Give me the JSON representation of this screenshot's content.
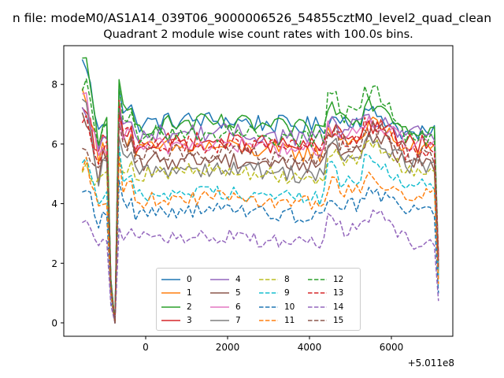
{
  "figure": {
    "suptitle": "n file: modeM0/AS1A14_039T06_9000006526_54855cztM0_level2_quad_clean",
    "offset_label": "+5.011e8"
  },
  "chart_data": {
    "type": "line",
    "title": "Quadrant 2 module wise count rates with 100.0s bins.",
    "xlabel": "",
    "ylabel": "",
    "xlim": [
      -2000,
      7500
    ],
    "ylim": [
      -0.45,
      9.3
    ],
    "x_ticks": [
      0,
      2000,
      4000,
      6000
    ],
    "x_tick_labels": [
      "0",
      "2000",
      "4000",
      "6000"
    ],
    "y_ticks": [
      0,
      2,
      4,
      6,
      8
    ],
    "y_tick_labels": [
      "0",
      "2",
      "4",
      "6",
      "8"
    ],
    "x_offset": "+5.011e8",
    "legend_position": "lower center",
    "series": [
      {
        "name": "0",
        "color": "#1f77b4",
        "dash": "solid",
        "start": 8.7,
        "peak": 8.1,
        "mid": 6.7,
        "flare": 7.0,
        "end": 6.3
      },
      {
        "name": "1",
        "color": "#ff7f0e",
        "dash": "solid",
        "start": 7.7,
        "peak": 7.0,
        "mid": 5.8,
        "flare": 6.6,
        "end": 5.8
      },
      {
        "name": "2",
        "color": "#2ca02c",
        "dash": "solid",
        "start": 8.7,
        "peak": 7.9,
        "mid": 6.6,
        "flare": 7.4,
        "end": 6.5
      },
      {
        "name": "3",
        "color": "#d62728",
        "dash": "solid",
        "start": 7.0,
        "peak": 7.3,
        "mid": 6.0,
        "flare": 6.6,
        "end": 6.0
      },
      {
        "name": "4",
        "color": "#9467bd",
        "dash": "solid",
        "start": 7.0,
        "peak": 7.1,
        "mid": 6.3,
        "flare": 6.8,
        "end": 6.3
      },
      {
        "name": "5",
        "color": "#8c564b",
        "dash": "solid",
        "start": 6.8,
        "peak": 7.1,
        "mid": 5.4,
        "flare": 6.2,
        "end": 5.4
      },
      {
        "name": "6",
        "color": "#e377c2",
        "dash": "solid",
        "start": 7.4,
        "peak": 6.9,
        "mid": 5.9,
        "flare": 6.7,
        "end": 5.9
      },
      {
        "name": "7",
        "color": "#7f7f7f",
        "dash": "solid",
        "start": 7.2,
        "peak": 6.4,
        "mid": 5.1,
        "flare": 6.1,
        "end": 5.3
      },
      {
        "name": "8",
        "color": "#bcbd22",
        "dash": "dashed",
        "start": 5.3,
        "peak": 5.8,
        "mid": 5.0,
        "flare": 5.9,
        "end": 5.1
      },
      {
        "name": "9",
        "color": "#17becf",
        "dash": "dashed",
        "start": 5.6,
        "peak": 5.7,
        "mid": 4.3,
        "flare": 5.4,
        "end": 4.6
      },
      {
        "name": "10",
        "color": "#1f77b4",
        "dash": "dashed",
        "start": 4.6,
        "peak": 4.6,
        "mid": 3.7,
        "flare": 4.3,
        "end": 3.8
      },
      {
        "name": "11",
        "color": "#ff7f0e",
        "dash": "dashed",
        "start": 5.3,
        "peak": 5.5,
        "mid": 4.1,
        "flare": 4.8,
        "end": 4.3
      },
      {
        "name": "12",
        "color": "#2ca02c",
        "dash": "dashed",
        "start": 8.0,
        "peak": 7.9,
        "mid": 6.3,
        "flare": 7.8,
        "end": 6.2
      },
      {
        "name": "13",
        "color": "#d62728",
        "dash": "dashed",
        "start": 6.9,
        "peak": 7.0,
        "mid": 5.9,
        "flare": 6.6,
        "end": 5.7
      },
      {
        "name": "14",
        "color": "#9467bd",
        "dash": "dashed",
        "start": 3.5,
        "peak": 3.3,
        "mid": 2.8,
        "flare": 3.6,
        "end": 2.7
      },
      {
        "name": "15",
        "color": "#8c564b",
        "dash": "dashed",
        "start": 6.0,
        "peak": 6.9,
        "mid": 5.6,
        "flare": 6.5,
        "end": 5.6
      }
    ]
  }
}
